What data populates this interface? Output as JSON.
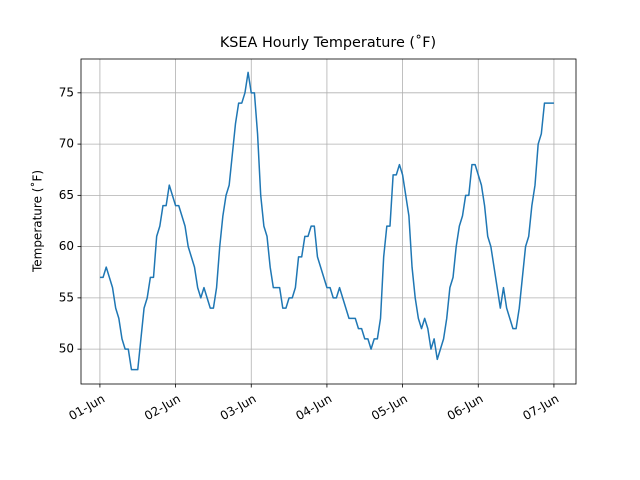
{
  "chart_data": {
    "type": "line",
    "title": "KSEA Hourly Temperature (˚F)",
    "y_label": "Temperature (˚F)",
    "categories": [
      "01-Jun",
      null,
      null,
      null,
      null,
      null,
      null,
      null,
      null,
      null,
      null,
      null,
      null,
      null,
      null,
      null,
      null,
      null,
      null,
      null,
      null,
      null,
      null,
      null,
      "02-Jun",
      null,
      null,
      null,
      null,
      null,
      null,
      null,
      null,
      null,
      null,
      null,
      null,
      null,
      null,
      null,
      null,
      null,
      null,
      null,
      null,
      null,
      null,
      null,
      "03-Jun",
      null,
      null,
      null,
      null,
      null,
      null,
      null,
      null,
      null,
      null,
      null,
      null,
      null,
      null,
      null,
      null,
      null,
      null,
      null,
      null,
      null,
      null,
      null,
      "04-Jun",
      null,
      null,
      null,
      null,
      null,
      null,
      null,
      null,
      null,
      null,
      null,
      null,
      null,
      null,
      null,
      null,
      null,
      null,
      null,
      null,
      null,
      null,
      null,
      "05-Jun",
      null,
      null,
      null,
      null,
      null,
      null,
      null,
      null,
      null,
      null,
      null,
      null,
      null,
      null,
      null,
      null,
      null,
      null,
      null,
      null,
      null,
      null,
      null,
      "06-Jun",
      null,
      null,
      null,
      null,
      null,
      null,
      null,
      null,
      null,
      null,
      null,
      null,
      null,
      null,
      null,
      null,
      null,
      null,
      null,
      null,
      null,
      null,
      null,
      "07-Jun"
    ],
    "values": [
      57,
      57,
      58,
      57,
      56,
      54,
      53,
      51,
      50,
      50,
      48,
      48,
      48,
      51,
      54,
      55,
      57,
      57,
      61,
      62,
      64,
      64,
      66,
      65,
      64,
      64,
      63,
      62,
      60,
      59,
      58,
      56,
      55,
      56,
      55,
      54,
      54,
      56,
      60,
      63,
      65,
      66,
      69,
      72,
      74,
      74,
      75,
      77,
      75,
      75,
      71,
      65,
      62,
      61,
      58,
      56,
      56,
      56,
      54,
      54,
      55,
      55,
      56,
      59,
      59,
      61,
      61,
      62,
      62,
      59,
      58,
      57,
      56,
      56,
      55,
      55,
      56,
      55,
      54,
      53,
      53,
      53,
      52,
      52,
      51,
      51,
      50,
      51,
      51,
      53,
      59,
      62,
      62,
      67,
      67,
      68,
      67,
      65,
      63,
      58,
      55,
      53,
      52,
      53,
      52,
      50,
      51,
      49,
      50,
      51,
      53,
      56,
      57,
      60,
      62,
      63,
      65,
      65,
      68,
      68,
      67,
      66,
      64,
      61,
      60,
      58,
      56,
      54,
      56,
      54,
      53,
      52,
      52,
      54,
      57,
      60,
      61,
      64,
      66,
      70,
      71,
      74,
      74,
      74,
      74
    ],
    "color": "#1f77b4",
    "xlim": [
      -6,
      151
    ],
    "ylim": [
      46.6,
      78.3
    ],
    "yticks": [
      50,
      55,
      60,
      65,
      70,
      75
    ],
    "grid": true
  }
}
